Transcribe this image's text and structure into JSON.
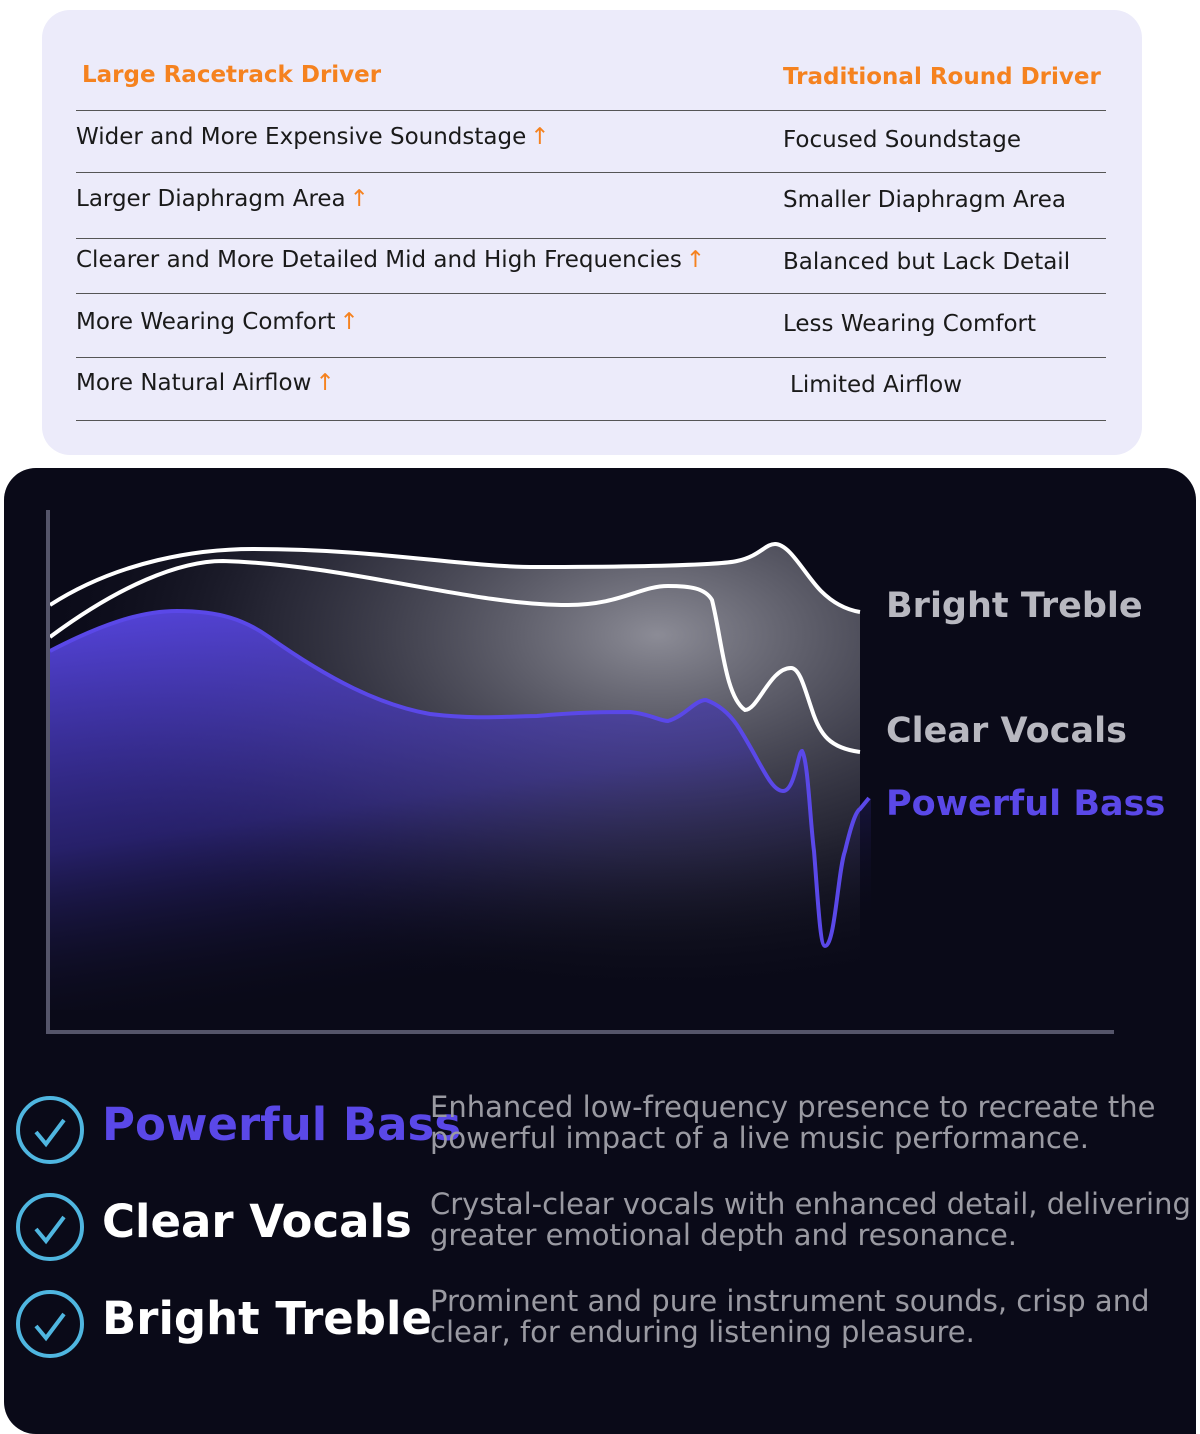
{
  "table": {
    "headers": [
      "Large Racetrack Driver",
      "Traditional Round Driver"
    ],
    "rows": [
      {
        "left": "Wider and More Expensive Soundstage",
        "right": "Focused Soundstage"
      },
      {
        "left": "Larger Diaphragm Area",
        "right": "Smaller Diaphragm Area"
      },
      {
        "left": "Clearer and More Detailed Mid and High Frequencies",
        "right": "Balanced but Lack Detail"
      },
      {
        "left": "More Wearing Comfort",
        "right": "Less Wearing Comfort"
      },
      {
        "left": "More Natural Airflow",
        "right": "Limited Airflow"
      }
    ],
    "arrow": "↑",
    "accent": "#f5821f"
  },
  "chart": {
    "labels": [
      "Bright Treble",
      "Clear Vocals",
      "Powerful Bass"
    ],
    "colors": {
      "treble": "#b8b8c0",
      "vocals": "#b8b8c0",
      "bass": "#5a48e8"
    }
  },
  "features": [
    {
      "title": "Powerful Bass",
      "desc": "Enhanced low-frequency presence to recreate the powerful impact of a live music performance.",
      "icon": "check-circle-icon"
    },
    {
      "title": "Clear Vocals",
      "desc": "Crystal-clear vocals with enhanced detail, delivering greater emotional depth and resonance.",
      "icon": "check-circle-icon"
    },
    {
      "title": "Bright Treble",
      "desc": "Prominent and pure instrument sounds, crisp and clear, for enduring listening pleasure.",
      "icon": "check-circle-icon"
    }
  ]
}
